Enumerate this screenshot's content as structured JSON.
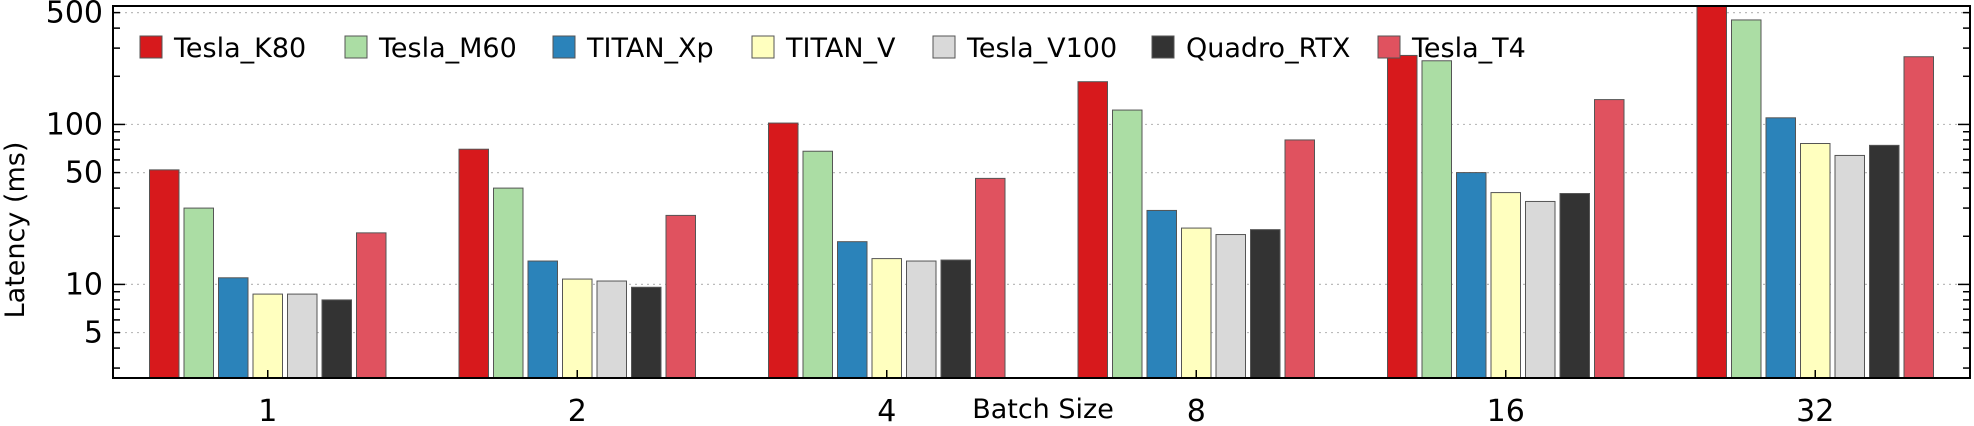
{
  "chart_data": {
    "type": "bar",
    "xlabel": "Batch Size",
    "ylabel": "Latency (ms)",
    "yscale": "log",
    "ylim": [
      2.6,
      550
    ],
    "yticks": [
      5,
      10,
      50,
      100,
      500
    ],
    "categories": [
      "1",
      "2",
      "4",
      "8",
      "16",
      "32"
    ],
    "grid": "y-dotted",
    "legend": "top-left, single row",
    "series": [
      {
        "name": "Tesla_K80",
        "color": "#d7191c",
        "values": [
          52,
          70,
          102,
          185,
          270,
          580
        ]
      },
      {
        "name": "Tesla_M60",
        "color": "#abdda4",
        "values": [
          30,
          40,
          68,
          123,
          250,
          450
        ]
      },
      {
        "name": "TITAN_Xp",
        "color": "#2b83ba",
        "values": [
          11,
          14,
          18.5,
          29,
          50,
          110
        ]
      },
      {
        "name": "TITAN_V",
        "color": "#ffffbf",
        "values": [
          8.7,
          10.8,
          14.5,
          22.5,
          37.5,
          76
        ]
      },
      {
        "name": "Tesla_V100",
        "color": "#d9d9d9",
        "values": [
          8.7,
          10.5,
          14,
          20.5,
          33,
          64
        ]
      },
      {
        "name": "Quadro_RTX",
        "color": "#333333",
        "values": [
          8,
          9.6,
          14.2,
          22,
          37,
          74
        ]
      },
      {
        "name": "Tesla_T4",
        "color": "#e0525f",
        "values": [
          21,
          27,
          46,
          80,
          143,
          265
        ]
      }
    ]
  }
}
